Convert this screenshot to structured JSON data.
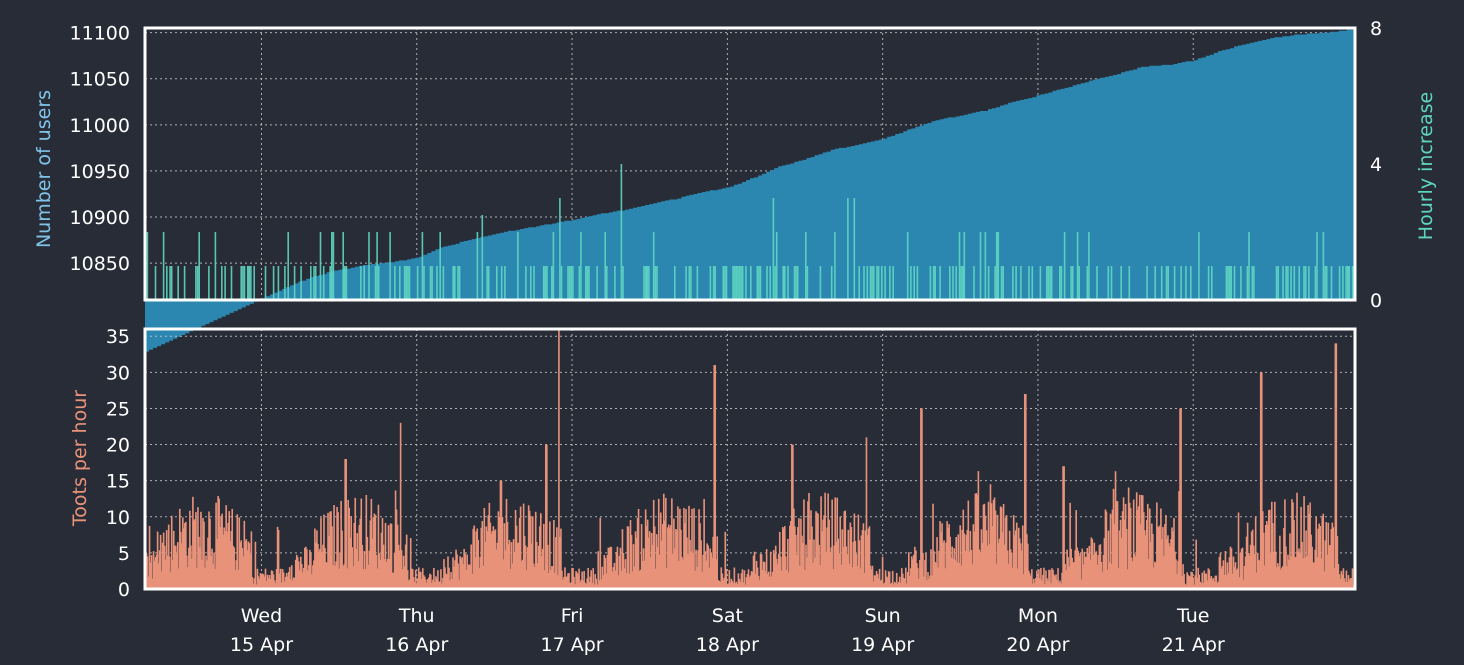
{
  "colors": {
    "background": "#282c37",
    "users_fill": "#2b87b0",
    "hourly_increase": "#5fd6c2",
    "toots": "#e8927a",
    "frame": "#ffffff",
    "grid": "#d0d0d0",
    "text": "#ffffff",
    "users_label": "#7fc4e8",
    "hourly_label": "#5fd6c2",
    "toots_label": "#e8927a"
  },
  "chart_data": [
    {
      "type": "area",
      "title": "",
      "ylabel": "Number of users",
      "ylabel2": "Hourly increase",
      "ylim": [
        10810,
        11105
      ],
      "y2lim": [
        0,
        8
      ],
      "yticks": [
        10850,
        10900,
        10950,
        11000,
        11050,
        11100
      ],
      "y2ticks": [
        0,
        4,
        8
      ],
      "grid": true,
      "series": [
        {
          "axis": "left",
          "style": "area",
          "x_hours": [
            0,
            4,
            8,
            12,
            16,
            20,
            24,
            28,
            32,
            36,
            40,
            44,
            48,
            52,
            56,
            60,
            64,
            68,
            72,
            76,
            80,
            84,
            88,
            92,
            96,
            100,
            104,
            108,
            112,
            116,
            120,
            124,
            128,
            132,
            136,
            140,
            144,
            148,
            152,
            156,
            160,
            164,
            168
          ],
          "values": [
            10812,
            10825,
            10836,
            10843,
            10848,
            10851,
            10856,
            10868,
            10875,
            10882,
            10887,
            10892,
            10897,
            10903,
            10908,
            10914,
            10920,
            10927,
            10932,
            10943,
            10955,
            10963,
            10973,
            10978,
            10985,
            10995,
            11005,
            11010,
            11016,
            11025,
            11032,
            11040,
            11048,
            11055,
            11063,
            11065,
            11070,
            11080,
            11088,
            11094,
            11098,
            11100,
            11103
          ]
        },
        {
          "axis": "right",
          "style": "hourly_bars",
          "spikes": [
            {
              "hour": 4,
              "value": 2
            },
            {
              "hour": 11,
              "value": 2
            },
            {
              "hour": 34,
              "value": 2.5
            },
            {
              "hour": 46,
              "value": 3
            },
            {
              "hour": 55.5,
              "value": 4
            },
            {
              "hour": 79,
              "value": 3
            },
            {
              "hour": 90.5,
              "value": 3
            },
            {
              "hour": 91.5,
              "value": 3
            },
            {
              "hour": 124,
              "value": 2
            },
            {
              "hour": 152.5,
              "value": 2
            },
            {
              "hour": 163,
              "value": 2
            }
          ]
        }
      ]
    },
    {
      "type": "bar",
      "title": "",
      "ylabel": "Toots per hour",
      "ylim": [
        0,
        36
      ],
      "yticks": [
        0,
        5,
        10,
        15,
        20,
        25,
        30,
        35
      ],
      "grid": true,
      "spikes": [
        {
          "hour": 13,
          "value": 18
        },
        {
          "hour": 21.5,
          "value": 23
        },
        {
          "hour": 37,
          "value": 15
        },
        {
          "hour": 44,
          "value": 20
        },
        {
          "hour": 46,
          "value": 36
        },
        {
          "hour": 70,
          "value": 31
        },
        {
          "hour": 82,
          "value": 20
        },
        {
          "hour": 93.5,
          "value": 21
        },
        {
          "hour": 102,
          "value": 25
        },
        {
          "hour": 118,
          "value": 27
        },
        {
          "hour": 124,
          "value": 17
        },
        {
          "hour": 142,
          "value": 25
        },
        {
          "hour": 154.5,
          "value": 30
        },
        {
          "hour": 166,
          "value": 34
        }
      ]
    }
  ],
  "x_axis": {
    "range_hours": [
      -18,
      169
    ],
    "ticks": [
      {
        "hour": 0,
        "day": "Wed",
        "date": "15 Apr"
      },
      {
        "hour": 24,
        "day": "Thu",
        "date": "16 Apr"
      },
      {
        "hour": 48,
        "day": "Fri",
        "date": "17 Apr"
      },
      {
        "hour": 72,
        "day": "Sat",
        "date": "18 Apr"
      },
      {
        "hour": 96,
        "day": "Sun",
        "date": "19 Apr"
      },
      {
        "hour": 120,
        "day": "Mon",
        "date": "20 Apr"
      },
      {
        "hour": 144,
        "day": "Tue",
        "date": "21 Apr"
      }
    ]
  }
}
